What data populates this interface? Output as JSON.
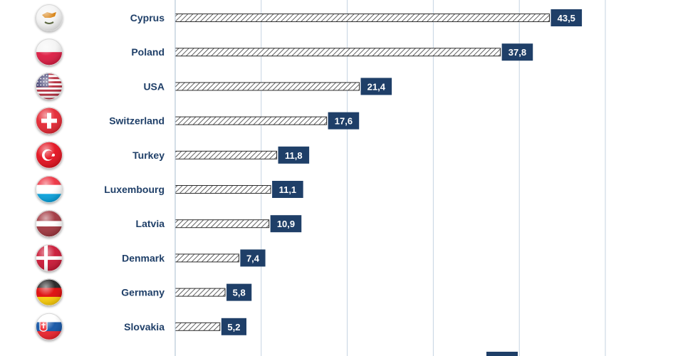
{
  "chart_data": {
    "type": "bar",
    "orientation": "horizontal",
    "categories": [
      "Cyprus",
      "Poland",
      "USA",
      "Switzerland",
      "Turkey",
      "Luxembourg",
      "Latvia",
      "Denmark",
      "Germany",
      "Slovakia"
    ],
    "values": [
      43.5,
      37.8,
      21.4,
      17.6,
      11.8,
      11.1,
      10.9,
      7.4,
      5.8,
      5.2
    ],
    "value_labels": [
      "43,5",
      "37,8",
      "21,4",
      "17,6",
      "11,8",
      "11,1",
      "10,9",
      "7,4",
      "5,8",
      "5,2"
    ],
    "flag_icons": [
      "cyprus-flag-icon",
      "poland-flag-icon",
      "usa-flag-icon",
      "switzerland-flag-icon",
      "turkey-flag-icon",
      "luxembourg-flag-icon",
      "latvia-flag-icon",
      "denmark-flag-icon",
      "germany-flag-icon",
      "slovakia-flag-icon"
    ],
    "xlim": [
      0,
      50
    ],
    "grid": true,
    "bar_style": "hatched",
    "colors": {
      "label": "#1f3f68",
      "value_box": "#1f3f68",
      "hatch": "#3a3a3a",
      "grid": "#c5d3e2"
    }
  }
}
